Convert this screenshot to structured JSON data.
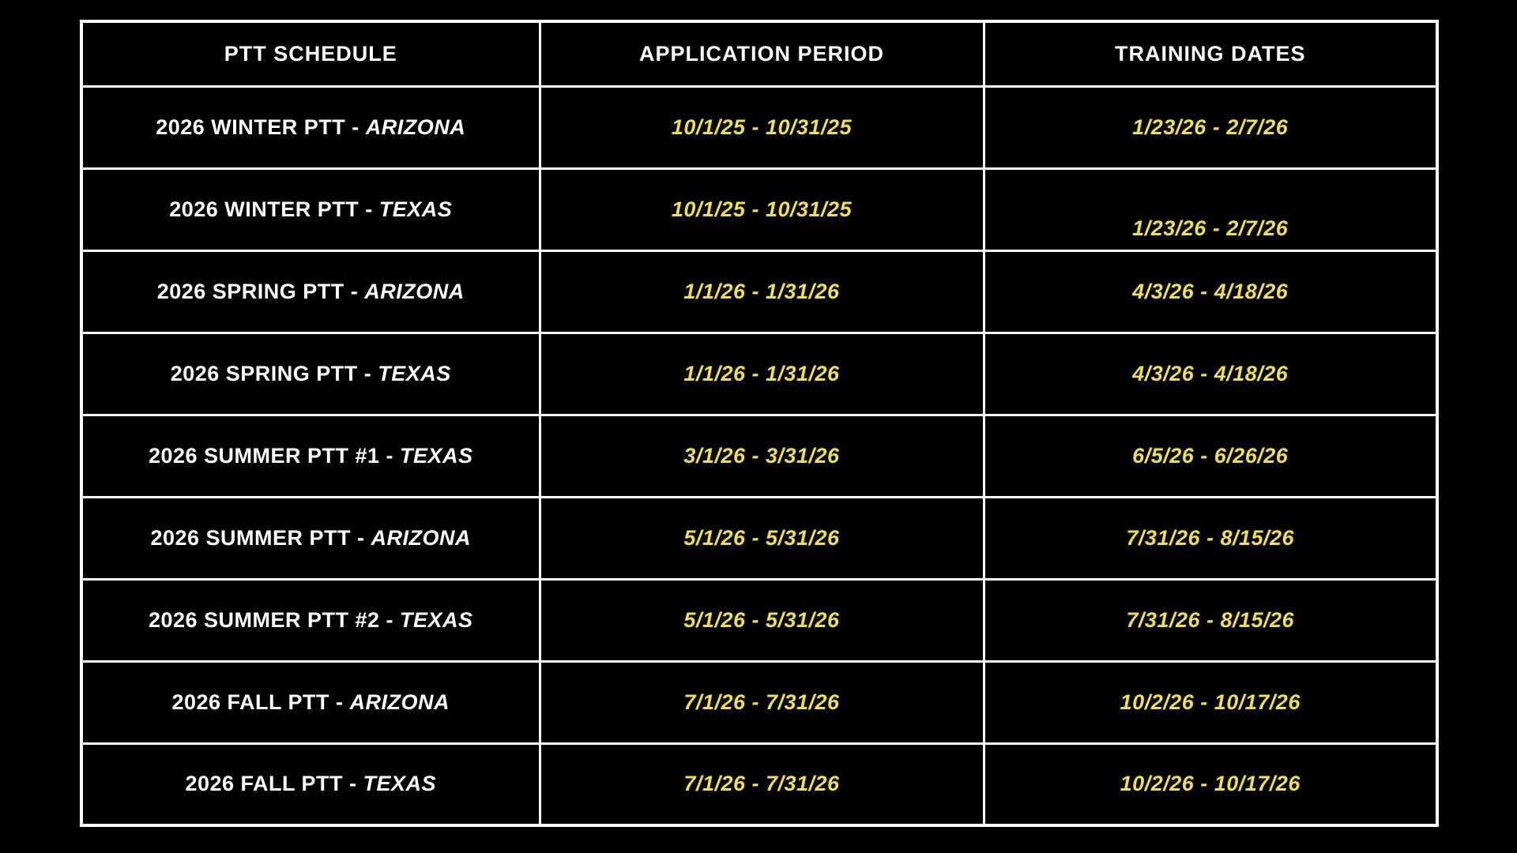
{
  "page": {
    "background_color": "#000000"
  },
  "table": {
    "headers": [
      "PTT SCHEDULE",
      "APPLICATION PERIOD",
      "TRAINING DATES"
    ],
    "colors": {
      "border": "#ffffff",
      "header_text": "#ffffff",
      "schedule_text": "#ffffff",
      "dates_text": "#F2DF4F",
      "cell_background": "#000000"
    },
    "rows": [
      {
        "schedule_prefix": "2026 WINTER PTT - ",
        "state": "ARIZONA",
        "application_period": "10/1/25 - 10/31/25",
        "training_dates": "1/23/26 - 2/7/26",
        "training_text_lowered": false
      },
      {
        "schedule_prefix": "2026 WINTER PTT - ",
        "state": "TEXAS",
        "application_period": "10/1/25 - 10/31/25",
        "training_dates": "1/23/26 - 2/7/26",
        "training_text_lowered": true
      },
      {
        "schedule_prefix": "2026 SPRING PTT - ",
        "state": "ARIZONA",
        "application_period": "1/1/26 - 1/31/26",
        "training_dates": "4/3/26 - 4/18/26",
        "training_text_lowered": false
      },
      {
        "schedule_prefix": "2026 SPRING PTT - ",
        "state": "TEXAS",
        "application_period": "1/1/26 - 1/31/26",
        "training_dates": "4/3/26 - 4/18/26",
        "training_text_lowered": false
      },
      {
        "schedule_prefix": "2026 SUMMER PTT #1 - ",
        "state": "TEXAS",
        "application_period": "3/1/26 - 3/31/26",
        "training_dates": "6/5/26 - 6/26/26",
        "training_text_lowered": false
      },
      {
        "schedule_prefix": "2026 SUMMER PTT - ",
        "state": "ARIZONA",
        "application_period": "5/1/26 - 5/31/26",
        "training_dates": "7/31/26 - 8/15/26",
        "training_text_lowered": false
      },
      {
        "schedule_prefix": "2026 SUMMER PTT #2 - ",
        "state": "TEXAS",
        "application_period": "5/1/26 - 5/31/26",
        "training_dates": "7/31/26 - 8/15/26",
        "training_text_lowered": false
      },
      {
        "schedule_prefix": "2026 FALL PTT - ",
        "state": "ARIZONA",
        "application_period": "7/1/26 - 7/31/26",
        "training_dates": "10/2/26 - 10/17/26",
        "training_text_lowered": false
      },
      {
        "schedule_prefix": "2026 FALL PTT - ",
        "state": "TEXAS",
        "application_period": "7/1/26 - 7/31/26",
        "training_dates": "10/2/26 - 10/17/26",
        "training_text_lowered": false
      }
    ]
  }
}
